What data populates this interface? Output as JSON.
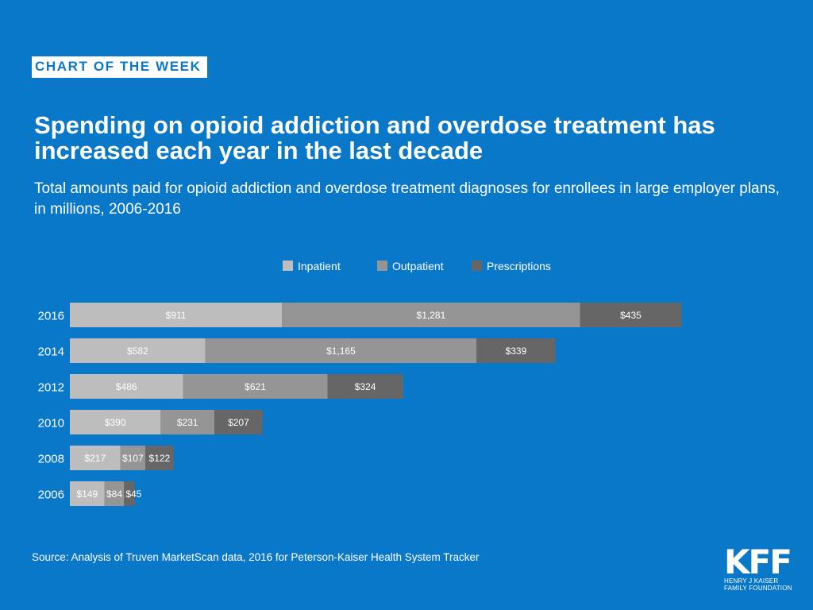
{
  "badge": "CHART OF THE WEEK",
  "title": "Spending on opioid addiction and overdose treatment has increased each year in the last decade",
  "subtitle": "Total amounts paid for opioid addiction and overdose treatment diagnoses for enrollees in large employer plans, in millions, 2006-2016",
  "source": "Source: Analysis of Truven MarketScan data, 2016 for Peterson-Kaiser Health System Tracker",
  "logo": {
    "mark": "KFF",
    "sub": "HENRY J KAISER\nFAMILY FOUNDATION"
  },
  "colors": {
    "background": "#0A78C8",
    "inpatient": "#BDBDBD",
    "outpatient": "#959595",
    "prescriptions": "#666666"
  },
  "chart_data": {
    "type": "bar",
    "orientation": "horizontal",
    "stacked": true,
    "categories": [
      "2016",
      "2014",
      "2012",
      "2010",
      "2008",
      "2006"
    ],
    "series": [
      {
        "name": "Inpatient",
        "values": [
          911,
          582,
          486,
          390,
          217,
          149
        ],
        "labels": [
          "$911",
          "$582",
          "$486",
          "$390",
          "$217",
          "$149"
        ]
      },
      {
        "name": "Outpatient",
        "values": [
          1281,
          1165,
          621,
          231,
          107,
          84
        ],
        "labels": [
          "$1,281",
          "$1,165",
          "$621",
          "$231",
          "$107",
          "$84"
        ]
      },
      {
        "name": "Prescriptions",
        "values": [
          435,
          339,
          324,
          207,
          122,
          45
        ],
        "labels": [
          "$435",
          "$339",
          "$324",
          "$207",
          "$122",
          "$45"
        ]
      }
    ],
    "legend_position": "top",
    "grid": false,
    "units": "millions of dollars"
  }
}
